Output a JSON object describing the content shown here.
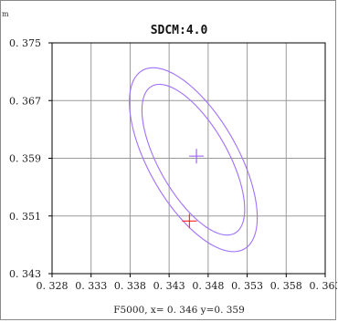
{
  "chart_data": {
    "type": "scatter",
    "title": "SDCM:4.0",
    "corner_mark": "m",
    "xlim": [
      0.328,
      0.363
    ],
    "ylim": [
      0.343,
      0.375
    ],
    "x_ticks": [
      0.328,
      0.333,
      0.338,
      0.343,
      0.348,
      0.353,
      0.358,
      0.363
    ],
    "x_tick_labels": [
      "0. 328",
      "0. 333",
      "0. 338",
      "0. 343",
      "0. 348",
      "0. 353",
      "0. 358",
      "0. 363"
    ],
    "y_ticks": [
      0.375,
      0.367,
      0.359,
      0.351,
      0.343
    ],
    "y_tick_labels": [
      "0. 375",
      "0. 367",
      "0. 359",
      "0. 351",
      "0. 343"
    ],
    "grid": true,
    "ellipses": [
      {
        "center": [
          0.3461,
          0.3588
        ],
        "semi_axes": [
          0.0115,
          0.0045
        ],
        "angle_deg": -63,
        "color": "#a070ff"
      },
      {
        "center": [
          0.3461,
          0.3588
        ],
        "semi_axes": [
          0.014,
          0.0058
        ],
        "angle_deg": -63,
        "color": "#a070ff"
      }
    ],
    "markers": [
      {
        "name": "center",
        "x": 0.3465,
        "y": 0.3593,
        "color": "#9a50ff"
      },
      {
        "name": "measured",
        "x": 0.3456,
        "y": 0.3503,
        "color": "#ff2020"
      }
    ],
    "footer": "F5000,  x= 0. 346  y=0. 359"
  }
}
